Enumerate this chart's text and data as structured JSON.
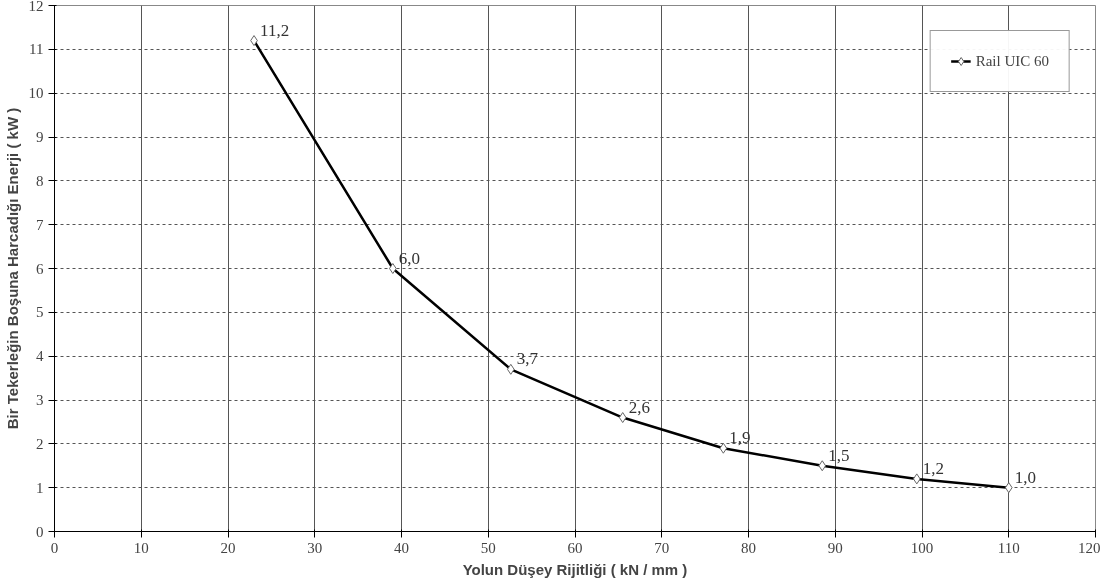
{
  "chart_data": {
    "type": "line",
    "xlabel": "Yolun Düşey Rijitliği ( kN / mm )",
    "ylabel": "Bir Tekerleğin Boşuna Harcadığı Enerji ( kW )",
    "x": [
      23,
      39,
      52.6,
      65.5,
      77.1,
      88.5,
      99.4,
      110
    ],
    "series": [
      {
        "name": "Rail UIC 60",
        "color": "#000000",
        "values": [
          11.2,
          6.0,
          3.7,
          2.6,
          1.9,
          1.5,
          1.2,
          1.0
        ],
        "value_labels": [
          "11,2",
          "6,0",
          "3,7",
          "2,6",
          "1,9",
          "1,5",
          "1,2",
          "1,0"
        ]
      }
    ],
    "xlim": [
      0,
      120
    ],
    "xticks": [
      0,
      10,
      20,
      30,
      40,
      50,
      60,
      70,
      80,
      90,
      100,
      110,
      120
    ],
    "ylim": [
      0,
      12
    ],
    "yticks": [
      0,
      1,
      2,
      3,
      4,
      5,
      6,
      7,
      8,
      9,
      10,
      11,
      12
    ],
    "grid": true,
    "legend": "top right",
    "marker": "diamond",
    "line_style": "solid"
  }
}
